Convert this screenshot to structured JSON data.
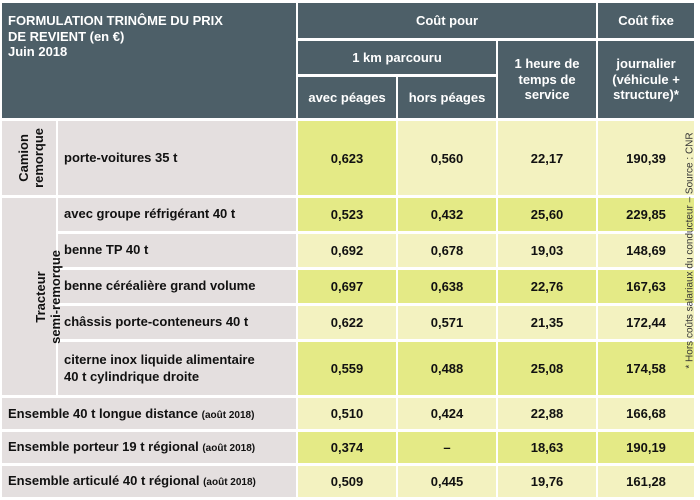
{
  "title_lines": [
    "FORMULATION TRINÔME DU PRIX",
    "DE REVIENT (en €)",
    "Juin 2018"
  ],
  "headers": {
    "cout_pour": "Coût pour",
    "cout_fixe": "Coût fixe",
    "km": "1 km parcouru",
    "heure": "1 heure de temps de service",
    "journalier": "journalier (véhicule + structure)*",
    "avec_peages": "avec péages",
    "hors_peages": "hors péages"
  },
  "groups": {
    "camion": [
      "Camion",
      "remorque"
    ],
    "tracteur": [
      "Tracteur",
      "semi-remorque"
    ]
  },
  "rows": [
    {
      "label": "porte-voitures 35 t",
      "values": [
        "0,623",
        "0,560",
        "22,17",
        "190,39"
      ]
    },
    {
      "label": "avec groupe réfrigérant 40 t",
      "values": [
        "0,523",
        "0,432",
        "25,60",
        "229,85"
      ]
    },
    {
      "label": "benne TP 40 t",
      "values": [
        "0,692",
        "0,678",
        "19,03",
        "148,69"
      ]
    },
    {
      "label": "benne céréalière grand volume",
      "values": [
        "0,697",
        "0,638",
        "22,76",
        "167,63"
      ]
    },
    {
      "label": "châssis porte-conteneurs 40 t",
      "values": [
        "0,622",
        "0,571",
        "21,35",
        "172,44"
      ]
    },
    {
      "label": "citerne inox liquide alimentaire",
      "label2": "40 t cylindrique droite",
      "values": [
        "0,559",
        "0,488",
        "25,08",
        "174,58"
      ]
    },
    {
      "label": "Ensemble 40 t longue distance",
      "suffix": "(août 2018)",
      "values": [
        "0,510",
        "0,424",
        "22,88",
        "166,68"
      ]
    },
    {
      "label": "Ensemble porteur 19 t régional",
      "suffix": "(août 2018)",
      "values": [
        "0,374",
        "–",
        "18,63",
        "190,19"
      ]
    },
    {
      "label": "Ensemble articulé 40 t régional",
      "suffix": "(août 2018)",
      "values": [
        "0,509",
        "0,445",
        "19,76",
        "161,28"
      ]
    }
  ],
  "footnote": "* Hors coûts salariaux du conducteur – Source : CNR"
}
